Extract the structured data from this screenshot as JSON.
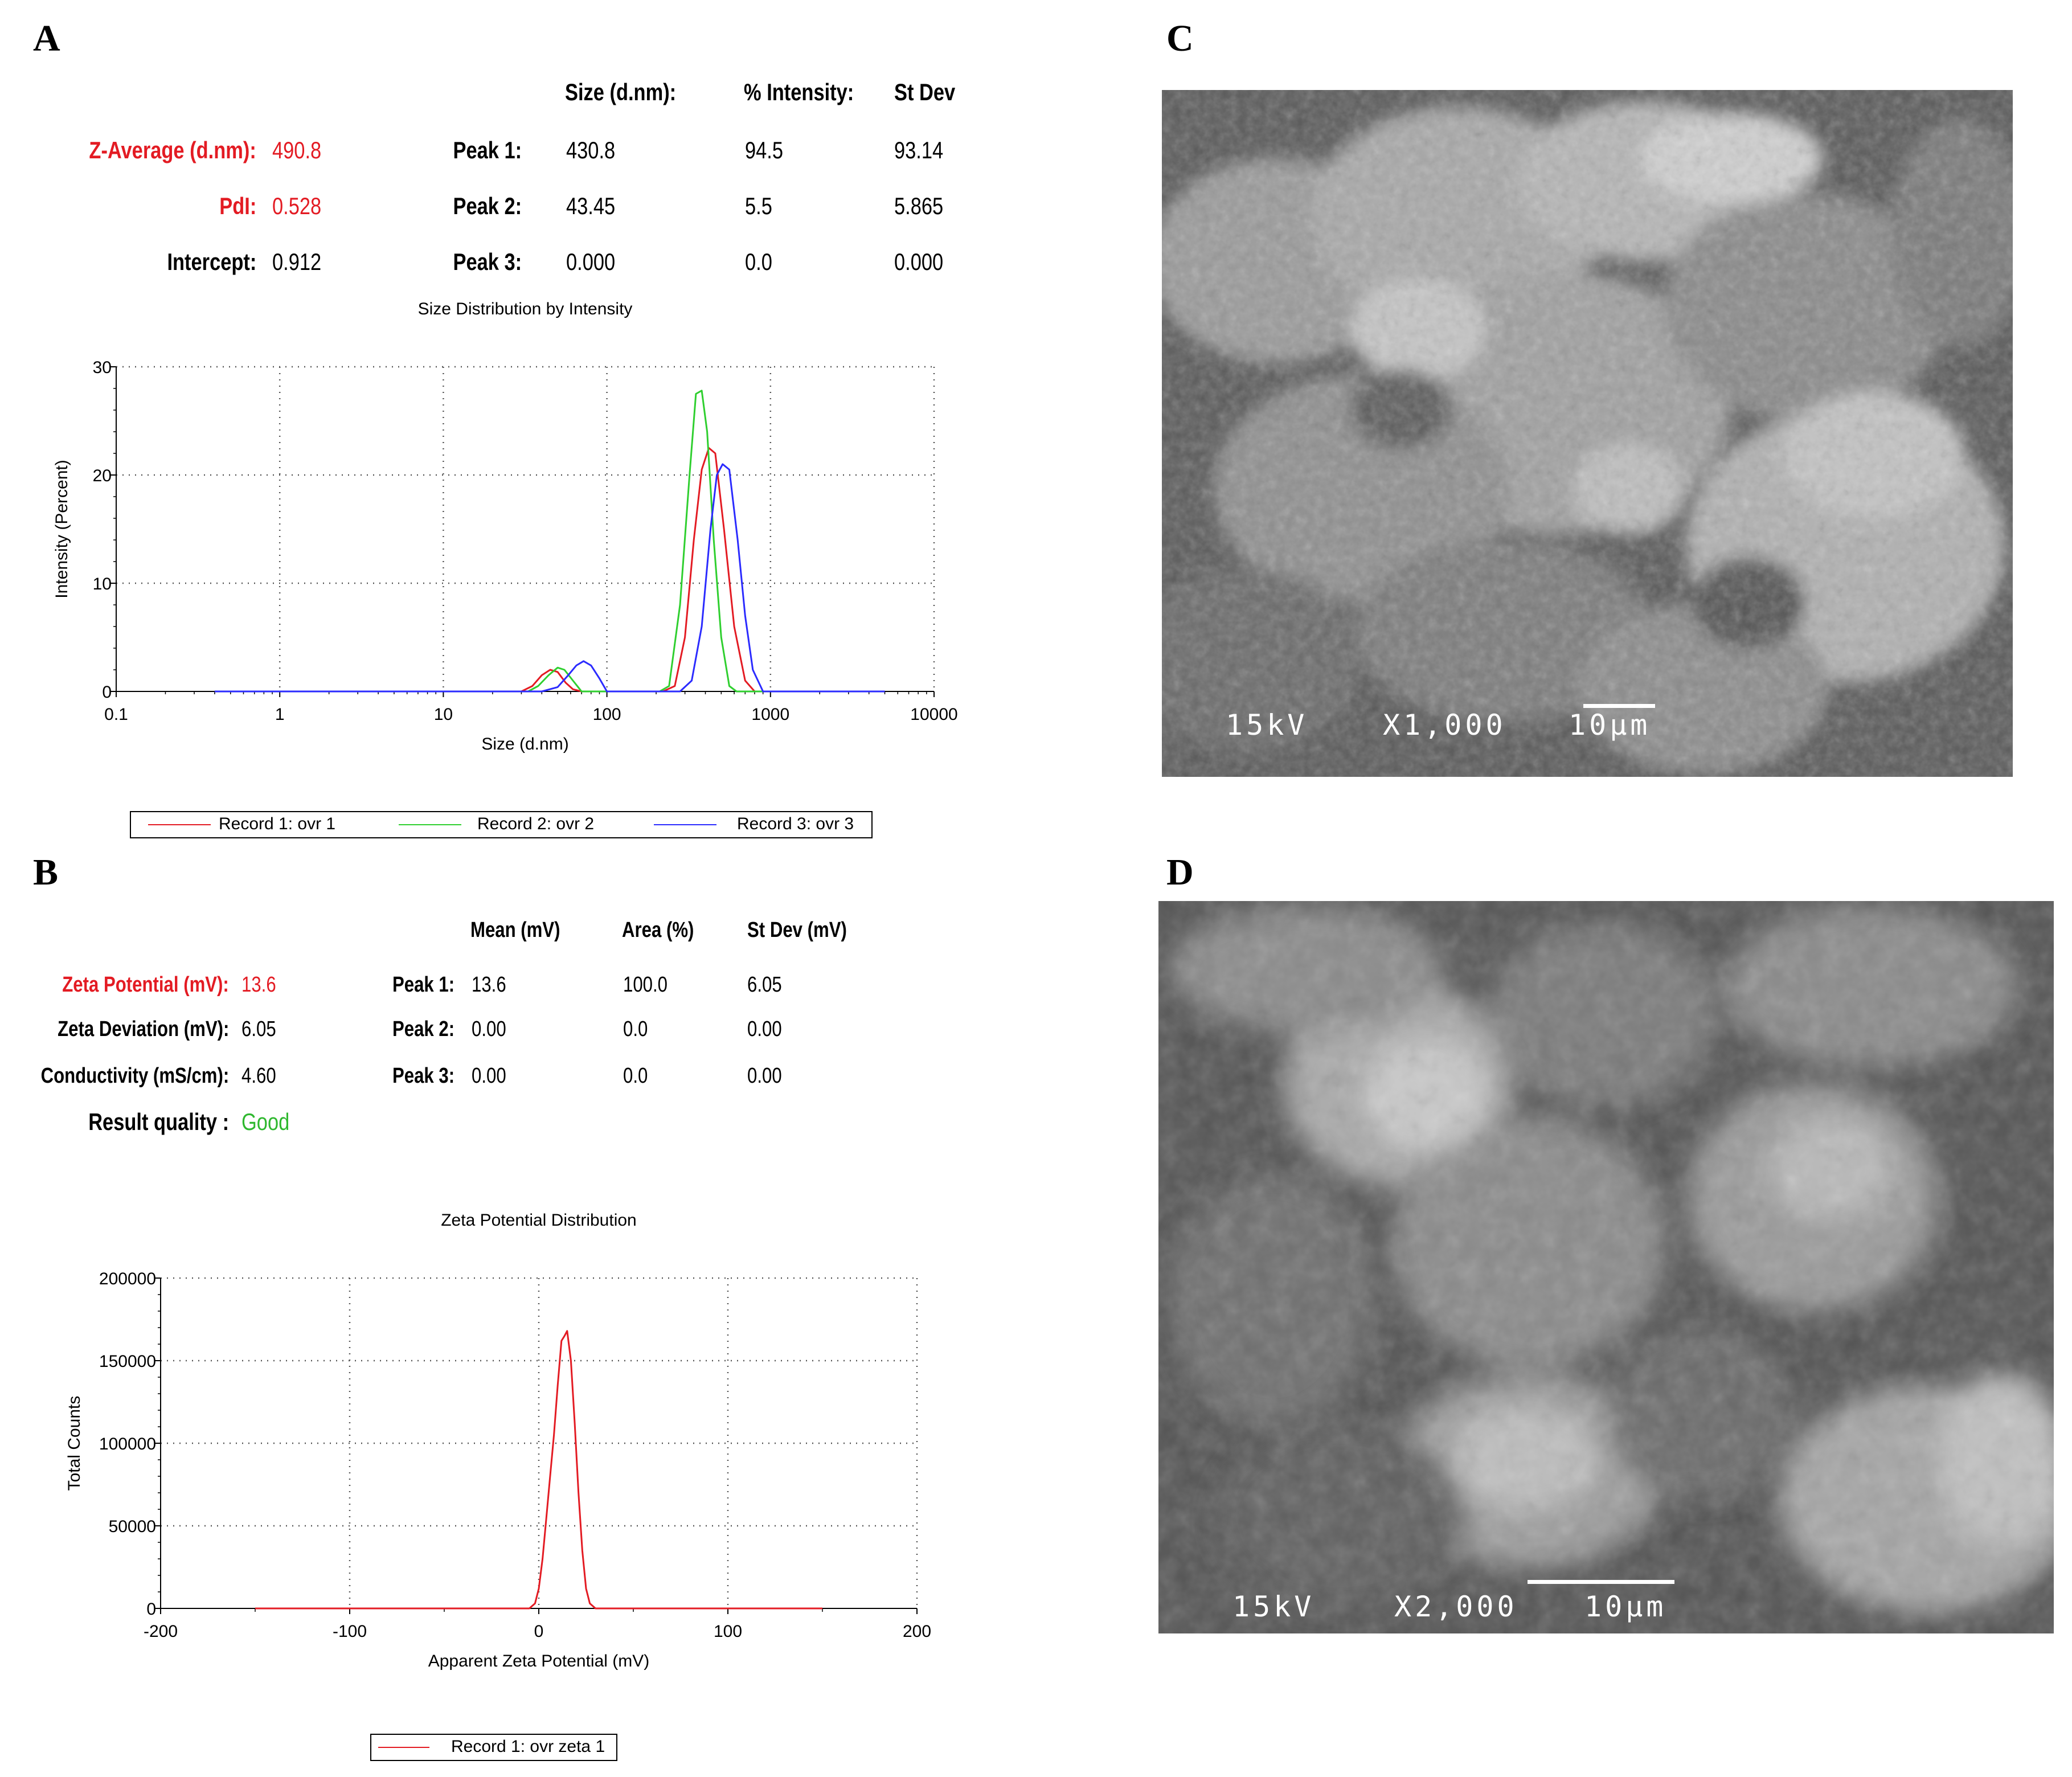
{
  "panels": {
    "a": {
      "letter": "A",
      "size_header": "Size (d.nm):",
      "intensity_header": "% Intensity:",
      "stdev_header": "St Dev",
      "z_average_label": "Z-Average (d.nm):",
      "z_average_value": "490.8",
      "pdi_label": "PdI:",
      "pdi_value": "0.528",
      "intercept_label": "Intercept:",
      "intercept_value": "0.912",
      "peaks": [
        {
          "label": "Peak 1:",
          "size": "430.8",
          "intensity": "94.5",
          "stdev": "93.14"
        },
        {
          "label": "Peak 2:",
          "size": "43.45",
          "intensity": "5.5",
          "stdev": "5.865"
        },
        {
          "label": "Peak 3:",
          "size": "0.000",
          "intensity": "0.0",
          "stdev": "0.000"
        }
      ],
      "legend": [
        "Record 1: ovr 1",
        "Record 2: ovr 2",
        "Record 3: ovr 3"
      ]
    },
    "b": {
      "letter": "B",
      "mean_header": "Mean (mV)",
      "area_header": "Area (%)",
      "stdev_header": "St Dev (mV)",
      "zeta_potential_label": "Zeta Potential (mV):",
      "zeta_potential_value": "13.6",
      "zeta_deviation_label": "Zeta Deviation (mV):",
      "zeta_deviation_value": "6.05",
      "conductivity_label": "Conductivity (mS/cm):",
      "conductivity_value": "4.60",
      "quality_label": "Result quality :",
      "quality_value": "Good",
      "peaks": [
        {
          "label": "Peak 1:",
          "mean": "13.6",
          "area": "100.0",
          "stdev": "6.05"
        },
        {
          "label": "Peak 2:",
          "mean": "0.00",
          "area": "0.0",
          "stdev": "0.00"
        },
        {
          "label": "Peak 3:",
          "mean": "0.00",
          "area": "0.0",
          "stdev": "0.00"
        }
      ],
      "legend": [
        "Record 1: ovr zeta 1"
      ]
    },
    "c": {
      "letter": "C",
      "voltage": "15kV",
      "magnification": "X1,000",
      "scale": "10μm"
    },
    "d": {
      "letter": "D",
      "voltage": "15kV",
      "magnification": "X2,000",
      "scale": "10μm"
    }
  },
  "colors": {
    "record1": "#e31b23",
    "record2": "#2fcf2f",
    "record3": "#2b2bff",
    "highlight": "#e31b23",
    "good": "#2fb82f"
  },
  "chart_data": [
    {
      "type": "line",
      "title": "Size Distribution by Intensity",
      "xlabel": "Size (d.nm)",
      "ylabel": "Intensity (Percent)",
      "xscale": "log",
      "xlim": [
        0.1,
        10000
      ],
      "ylim": [
        0,
        30
      ],
      "xticks": [
        "0.1",
        "1",
        "10",
        "100",
        "1000",
        "10000"
      ],
      "yticks": [
        "0",
        "10",
        "20",
        "30"
      ],
      "grid": true,
      "legend_position": "bottom",
      "series": [
        {
          "name": "Record 1: ovr 1",
          "color": "#e31b23",
          "x": [
            0.4,
            30,
            35,
            40,
            45,
            50,
            56,
            62,
            70,
            220,
            260,
            300,
            340,
            380,
            420,
            460,
            520,
            600,
            700,
            800,
            5000
          ],
          "y": [
            0,
            0,
            0.5,
            1.5,
            2.0,
            1.8,
            0.8,
            0.2,
            0,
            0,
            0.5,
            5,
            14,
            20.5,
            22.5,
            22,
            15,
            6,
            1,
            0,
            0
          ]
        },
        {
          "name": "Record 2: ovr 2",
          "color": "#2fcf2f",
          "x": [
            0.4,
            33,
            38,
            44,
            50,
            55,
            62,
            70,
            210,
            240,
            280,
            320,
            350,
            380,
            410,
            450,
            500,
            560,
            620,
            5000
          ],
          "y": [
            0,
            0,
            0.5,
            1.5,
            2.2,
            2.0,
            1.0,
            0,
            0,
            0.5,
            8,
            20,
            27.5,
            27.8,
            24,
            14,
            5,
            0.5,
            0,
            0
          ]
        },
        {
          "name": "Record 3: ovr 3",
          "color": "#2b2bff",
          "x": [
            0.4,
            40,
            50,
            58,
            65,
            72,
            80,
            90,
            100,
            280,
            330,
            380,
            430,
            470,
            510,
            560,
            630,
            700,
            780,
            900,
            5000
          ],
          "y": [
            0,
            0,
            0.4,
            1.5,
            2.4,
            2.8,
            2.4,
            1.2,
            0,
            0,
            1,
            6,
            15,
            20,
            21,
            20.5,
            14,
            7,
            2,
            0,
            0
          ]
        }
      ]
    },
    {
      "type": "line",
      "title": "Zeta Potential Distribution",
      "xlabel": "Apparent Zeta Potential (mV)",
      "ylabel": "Total Counts",
      "xlim": [
        -200,
        200
      ],
      "ylim": [
        0,
        200000
      ],
      "xticks": [
        "-200",
        "-100",
        "0",
        "100",
        "200"
      ],
      "yticks": [
        "0",
        "50000",
        "100000",
        "150000",
        "200000"
      ],
      "grid": true,
      "legend_position": "bottom",
      "series": [
        {
          "name": "Record 1: ovr zeta 1",
          "color": "#e31b23",
          "x": [
            -150,
            -5,
            -2,
            0,
            2,
            4,
            6,
            8,
            10,
            12,
            13.6,
            15,
            17,
            19,
            21,
            23,
            25,
            27,
            30,
            150
          ],
          "y": [
            0,
            0,
            3000,
            12000,
            30000,
            55000,
            80000,
            105000,
            135000,
            162000,
            165000,
            168000,
            150000,
            112000,
            70000,
            35000,
            12000,
            3000,
            0,
            0
          ]
        }
      ]
    }
  ]
}
